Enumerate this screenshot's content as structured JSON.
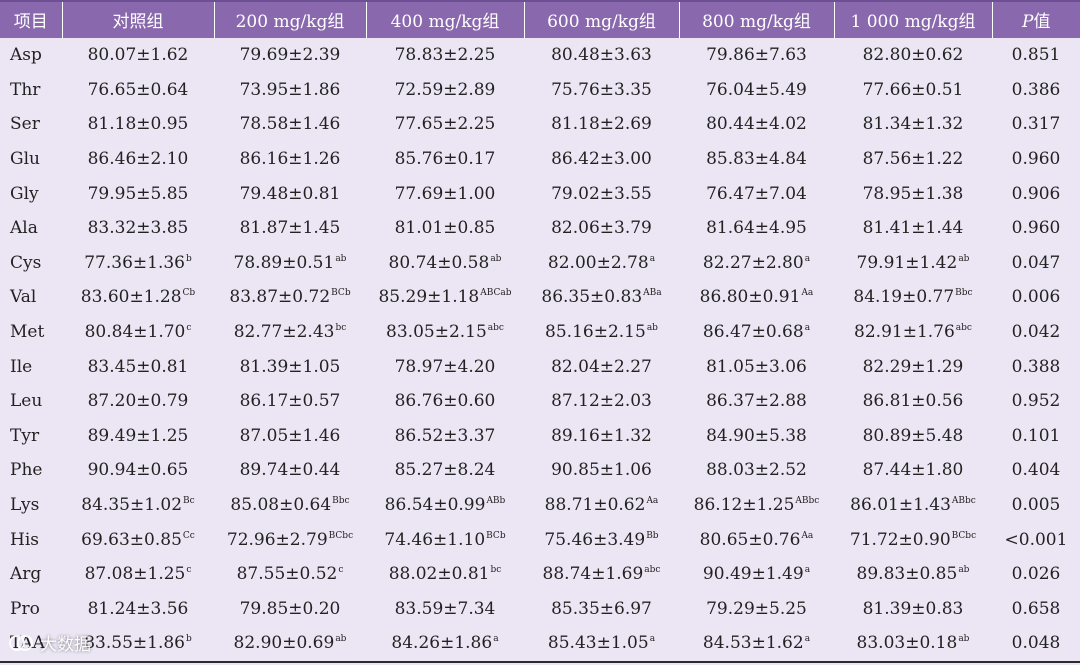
{
  "table": {
    "headers": [
      "项目",
      "对照组",
      "200 mg/kg组",
      "400 mg/kg组",
      "600 mg/kg组",
      "800 mg/kg组",
      "1 000 mg/kg组",
      {
        "italic": "P",
        "rest": "值"
      }
    ],
    "rows": [
      {
        "name": "Asp",
        "cells": [
          {
            "v": "80.07±1.62",
            "s": ""
          },
          {
            "v": "79.69±2.39",
            "s": ""
          },
          {
            "v": "78.83±2.25",
            "s": ""
          },
          {
            "v": "80.48±3.63",
            "s": ""
          },
          {
            "v": "79.86±7.63",
            "s": ""
          },
          {
            "v": "82.80±0.62",
            "s": ""
          }
        ],
        "p": "0.851"
      },
      {
        "name": "Thr",
        "cells": [
          {
            "v": "76.65±0.64",
            "s": ""
          },
          {
            "v": "73.95±1.86",
            "s": ""
          },
          {
            "v": "72.59±2.89",
            "s": ""
          },
          {
            "v": "75.76±3.35",
            "s": ""
          },
          {
            "v": "76.04±5.49",
            "s": ""
          },
          {
            "v": "77.66±0.51",
            "s": ""
          }
        ],
        "p": "0.386"
      },
      {
        "name": "Ser",
        "cells": [
          {
            "v": "81.18±0.95",
            "s": ""
          },
          {
            "v": "78.58±1.46",
            "s": ""
          },
          {
            "v": "77.65±2.25",
            "s": ""
          },
          {
            "v": "81.18±2.69",
            "s": ""
          },
          {
            "v": "80.44±4.02",
            "s": ""
          },
          {
            "v": "81.34±1.32",
            "s": ""
          }
        ],
        "p": "0.317"
      },
      {
        "name": "Glu",
        "cells": [
          {
            "v": "86.46±2.10",
            "s": ""
          },
          {
            "v": "86.16±1.26",
            "s": ""
          },
          {
            "v": "85.76±0.17",
            "s": ""
          },
          {
            "v": "86.42±3.00",
            "s": ""
          },
          {
            "v": "85.83±4.84",
            "s": ""
          },
          {
            "v": "87.56±1.22",
            "s": ""
          }
        ],
        "p": "0.960"
      },
      {
        "name": "Gly",
        "cells": [
          {
            "v": "79.95±5.85",
            "s": ""
          },
          {
            "v": "79.48±0.81",
            "s": ""
          },
          {
            "v": "77.69±1.00",
            "s": ""
          },
          {
            "v": "79.02±3.55",
            "s": ""
          },
          {
            "v": "76.47±7.04",
            "s": ""
          },
          {
            "v": "78.95±1.38",
            "s": ""
          }
        ],
        "p": "0.906"
      },
      {
        "name": "Ala",
        "cells": [
          {
            "v": "83.32±3.85",
            "s": ""
          },
          {
            "v": "81.87±1.45",
            "s": ""
          },
          {
            "v": "81.01±0.85",
            "s": ""
          },
          {
            "v": "82.06±3.79",
            "s": ""
          },
          {
            "v": "81.64±4.95",
            "s": ""
          },
          {
            "v": "81.41±1.44",
            "s": ""
          }
        ],
        "p": "0.960"
      },
      {
        "name": "Cys",
        "cells": [
          {
            "v": "77.36±1.36",
            "s": "b"
          },
          {
            "v": "78.89±0.51",
            "s": "ab"
          },
          {
            "v": "80.74±0.58",
            "s": "ab"
          },
          {
            "v": "82.00±2.78",
            "s": "a"
          },
          {
            "v": "82.27±2.80",
            "s": "a"
          },
          {
            "v": "79.91±1.42",
            "s": "ab"
          }
        ],
        "p": "0.047"
      },
      {
        "name": "Val",
        "cells": [
          {
            "v": "83.60±1.28",
            "s": "Cb"
          },
          {
            "v": "83.87±0.72",
            "s": "BCb"
          },
          {
            "v": "85.29±1.18",
            "s": "ABCab"
          },
          {
            "v": "86.35±0.83",
            "s": "ABa"
          },
          {
            "v": "86.80±0.91",
            "s": "Aa"
          },
          {
            "v": "84.19±0.77",
            "s": "Bbc"
          }
        ],
        "p": "0.006"
      },
      {
        "name": "Met",
        "cells": [
          {
            "v": "80.84±1.70",
            "s": "c"
          },
          {
            "v": "82.77±2.43",
            "s": "bc"
          },
          {
            "v": "83.05±2.15",
            "s": "abc"
          },
          {
            "v": "85.16±2.15",
            "s": "ab"
          },
          {
            "v": "86.47±0.68",
            "s": "a"
          },
          {
            "v": "82.91±1.76",
            "s": "abc"
          }
        ],
        "p": "0.042"
      },
      {
        "name": "Ile",
        "cells": [
          {
            "v": "83.45±0.81",
            "s": ""
          },
          {
            "v": "81.39±1.05",
            "s": ""
          },
          {
            "v": "78.97±4.20",
            "s": ""
          },
          {
            "v": "82.04±2.27",
            "s": ""
          },
          {
            "v": "81.05±3.06",
            "s": ""
          },
          {
            "v": "82.29±1.29",
            "s": ""
          }
        ],
        "p": "0.388"
      },
      {
        "name": "Leu",
        "cells": [
          {
            "v": "87.20±0.79",
            "s": ""
          },
          {
            "v": "86.17±0.57",
            "s": ""
          },
          {
            "v": "86.76±0.60",
            "s": ""
          },
          {
            "v": "87.12±2.03",
            "s": ""
          },
          {
            "v": "86.37±2.88",
            "s": ""
          },
          {
            "v": "86.81±0.56",
            "s": ""
          }
        ],
        "p": "0.952"
      },
      {
        "name": "Tyr",
        "cells": [
          {
            "v": "89.49±1.25",
            "s": ""
          },
          {
            "v": "87.05±1.46",
            "s": ""
          },
          {
            "v": "86.52±3.37",
            "s": ""
          },
          {
            "v": "89.16±1.32",
            "s": ""
          },
          {
            "v": "84.90±5.38",
            "s": ""
          },
          {
            "v": "80.89±5.48",
            "s": ""
          }
        ],
        "p": "0.101"
      },
      {
        "name": "Phe",
        "cells": [
          {
            "v": "90.94±0.65",
            "s": ""
          },
          {
            "v": "89.74±0.44",
            "s": ""
          },
          {
            "v": "85.27±8.24",
            "s": ""
          },
          {
            "v": "90.85±1.06",
            "s": ""
          },
          {
            "v": "88.03±2.52",
            "s": ""
          },
          {
            "v": "87.44±1.80",
            "s": ""
          }
        ],
        "p": "0.404"
      },
      {
        "name": "Lys",
        "cells": [
          {
            "v": "84.35±1.02",
            "s": "Bc"
          },
          {
            "v": "85.08±0.64",
            "s": "Bbc"
          },
          {
            "v": "86.54±0.99",
            "s": "ABb"
          },
          {
            "v": "88.71±0.62",
            "s": "Aa"
          },
          {
            "v": "86.12±1.25",
            "s": "ABbc"
          },
          {
            "v": "86.01±1.43",
            "s": "ABbc"
          }
        ],
        "p": "0.005"
      },
      {
        "name": "His",
        "cells": [
          {
            "v": "69.63±0.85",
            "s": "Cc"
          },
          {
            "v": "72.96±2.79",
            "s": "BCbc"
          },
          {
            "v": "74.46±1.10",
            "s": "BCb"
          },
          {
            "v": "75.46±3.49",
            "s": "Bb"
          },
          {
            "v": "80.65±0.76",
            "s": "Aa"
          },
          {
            "v": "71.72±0.90",
            "s": "BCbc"
          }
        ],
        "p": "<0.001"
      },
      {
        "name": "Arg",
        "cells": [
          {
            "v": "87.08±1.25",
            "s": "c"
          },
          {
            "v": "87.55±0.52",
            "s": "c"
          },
          {
            "v": "88.02±0.81",
            "s": "bc"
          },
          {
            "v": "88.74±1.69",
            "s": "abc"
          },
          {
            "v": "90.49±1.49",
            "s": "a"
          },
          {
            "v": "89.83±0.85",
            "s": "ab"
          }
        ],
        "p": "0.026"
      },
      {
        "name": "Pro",
        "cells": [
          {
            "v": "81.24±3.56",
            "s": ""
          },
          {
            "v": "79.85±0.20",
            "s": ""
          },
          {
            "v": "83.59±7.34",
            "s": ""
          },
          {
            "v": "85.35±6.97",
            "s": ""
          },
          {
            "v": "79.29±5.25",
            "s": ""
          },
          {
            "v": "81.39±0.83",
            "s": ""
          }
        ],
        "p": "0.658"
      },
      {
        "name": "TAA",
        "cells": [
          {
            "v": "83.55±1.86",
            "s": "b"
          },
          {
            "v": "82.90±0.69",
            "s": "ab"
          },
          {
            "v": "84.26±1.86",
            "s": "a"
          },
          {
            "v": "85.43±1.05",
            "s": "a"
          },
          {
            "v": "84.53±1.62",
            "s": "a"
          },
          {
            "v": "83.03±0.18",
            "s": "ab"
          }
        ],
        "p": "0.048"
      }
    ]
  },
  "watermark": {
    "text": "大数据",
    "icon": "logo-icon"
  }
}
